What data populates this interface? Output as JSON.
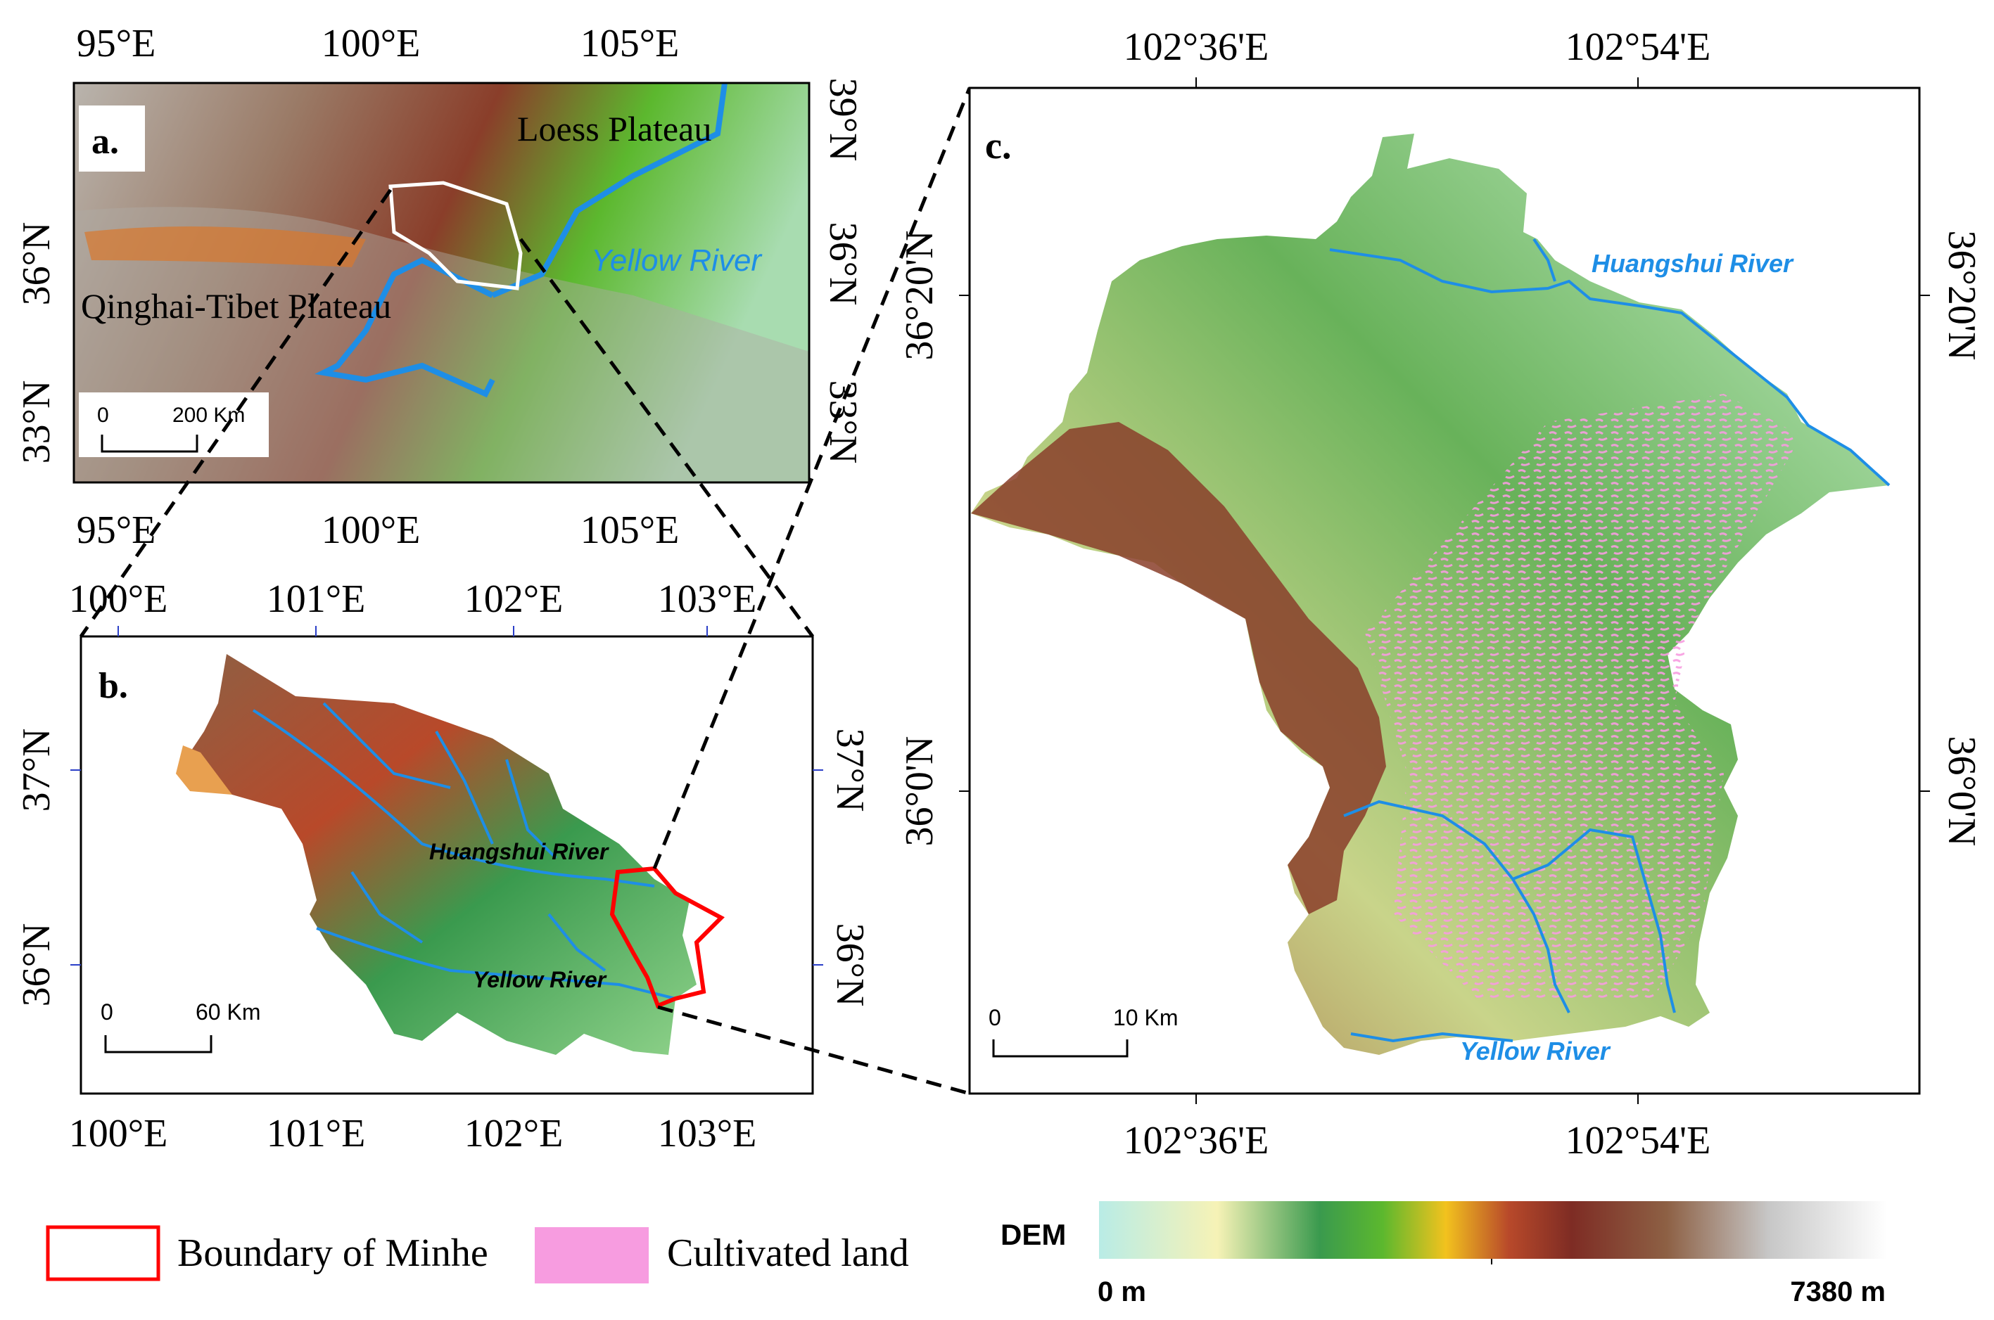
{
  "panel_a": {
    "label": "a.",
    "top_ticks": [
      "95°E",
      "100°E",
      "105°E"
    ],
    "bottom_ticks": [
      "95°E",
      "100°E",
      "105°E"
    ],
    "left_ticks": [
      "36°N",
      "33°N"
    ],
    "right_ticks": [
      "39°N",
      "36°N",
      "33°N"
    ],
    "region_labels": {
      "loess": "Loess Plateau",
      "qinghai": "Qinghai-Tibet Plateau",
      "river": "Yellow River"
    },
    "scale": {
      "zero": "0",
      "end": "200 Km"
    }
  },
  "panel_b": {
    "label": "b.",
    "top_ticks": [
      "100°E",
      "101°E",
      "102°E",
      "103°E"
    ],
    "bottom_ticks": [
      "100°E",
      "101°E",
      "102°E",
      "103°E"
    ],
    "left_ticks": [
      "37°N",
      "36°N"
    ],
    "right_ticks": [
      "37°N",
      "36°N"
    ],
    "river_labels": {
      "huangshui": "Huangshui River",
      "yellow": "Yellow River"
    },
    "scale": {
      "zero": "0",
      "end": "60 Km"
    }
  },
  "panel_c": {
    "label": "c.",
    "top_ticks": [
      "102°36'E",
      "102°54'E"
    ],
    "bottom_ticks": [
      "102°36'E",
      "102°54'E"
    ],
    "left_ticks": [
      "36°20'N",
      "36°0'N"
    ],
    "right_ticks": [
      "36°20'N",
      "36°0'N"
    ],
    "river_labels": {
      "huangshui": "Huangshui River",
      "yellow": "Yellow River"
    },
    "scale": {
      "zero": "0",
      "end": "10 Km"
    }
  },
  "legend": {
    "boundary": "Boundary of Minhe",
    "cultivated": "Cultivated land",
    "dem_title": "DEM",
    "dem_min": "0 m",
    "dem_max": "7380 m"
  },
  "colors": {
    "river": "#1e8ee6",
    "boundary": "#ff0000",
    "cultivated": "#f79ce0",
    "dem_ramp": [
      "#b9ece6",
      "#f6f2b6",
      "#3a9a4e",
      "#5cb82e",
      "#f2c21e",
      "#b8492a",
      "#7e2c24",
      "#8d6044",
      "#c7c7c7",
      "#ffffff"
    ]
  }
}
